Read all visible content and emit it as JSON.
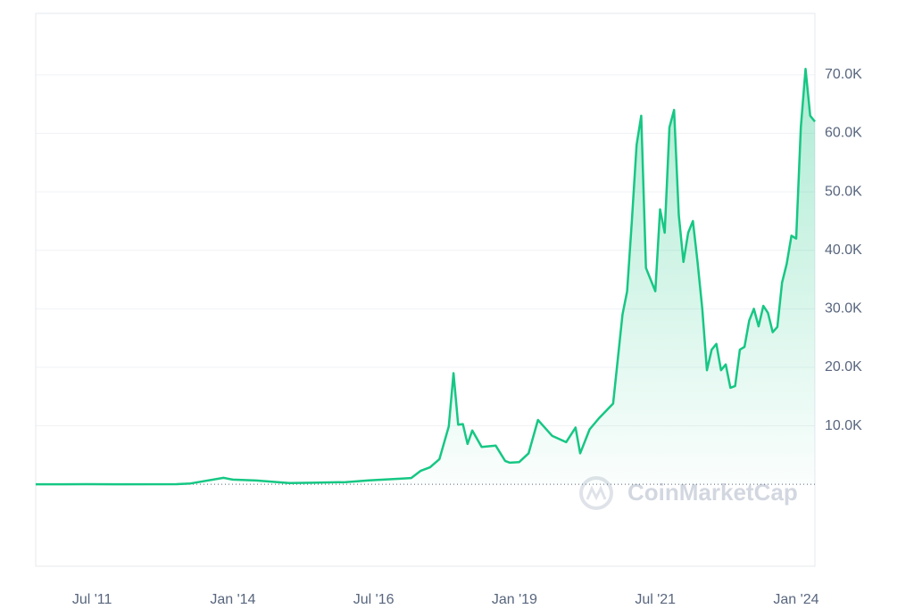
{
  "chart_data": {
    "type": "line",
    "watermark": "CoinMarketCap",
    "color": "#16c784",
    "grid": true,
    "x": [
      "2010-07",
      "2011-01",
      "2011-06",
      "2012-01",
      "2013-01",
      "2013-04",
      "2013-11",
      "2014-01",
      "2014-06",
      "2015-01",
      "2015-06",
      "2016-01",
      "2016-06",
      "2017-01",
      "2017-03",
      "2017-05",
      "2017-07",
      "2017-09",
      "2017-11",
      "2017-12",
      "2018-01",
      "2018-02",
      "2018-03",
      "2018-04",
      "2018-06",
      "2018-09",
      "2018-11",
      "2018-12",
      "2019-02",
      "2019-04",
      "2019-06",
      "2019-07",
      "2019-09",
      "2019-12",
      "2020-02",
      "2020-03",
      "2020-05",
      "2020-07",
      "2020-10",
      "2020-12",
      "2021-01",
      "2021-02",
      "2021-03",
      "2021-04",
      "2021-05",
      "2021-06",
      "2021-07",
      "2021-08",
      "2021-09",
      "2021-10",
      "2021-11",
      "2021-12",
      "2022-01",
      "2022-02",
      "2022-03",
      "2022-04",
      "2022-05",
      "2022-06",
      "2022-07",
      "2022-08",
      "2022-09",
      "2022-10",
      "2022-11",
      "2022-12",
      "2023-01",
      "2023-02",
      "2023-03",
      "2023-04",
      "2023-05",
      "2023-06",
      "2023-07",
      "2023-08",
      "2023-09",
      "2023-10",
      "2023-11",
      "2023-12",
      "2024-01",
      "2024-02",
      "2024-03",
      "2024-04",
      "2024-05"
    ],
    "values": [
      0.1,
      0.3,
      17,
      6,
      20,
      140,
      1100,
      800,
      640,
      220,
      260,
      370,
      670,
      970,
      1080,
      2300,
      2900,
      4300,
      9900,
      19000,
      10200,
      10300,
      6900,
      9200,
      6400,
      6600,
      4000,
      3700,
      3800,
      5300,
      11000,
      10100,
      8300,
      7200,
      9700,
      5300,
      9400,
      11300,
      13800,
      29000,
      33000,
      45000,
      58000,
      63000,
      37000,
      35000,
      33000,
      47000,
      43000,
      61000,
      64000,
      46000,
      38000,
      43000,
      45000,
      38000,
      30000,
      19500,
      23000,
      24000,
      19500,
      20500,
      16500,
      16800,
      23000,
      23500,
      28000,
      30000,
      27000,
      30500,
      29300,
      26000,
      26900,
      34500,
      37700,
      42500,
      42000,
      61000,
      71000,
      63000,
      62000
    ],
    "xlim": [
      "2010-07",
      "2024-05"
    ],
    "xticks": [
      {
        "value": "2011-07",
        "label": "Jul '11"
      },
      {
        "value": "2014-01",
        "label": "Jan '14"
      },
      {
        "value": "2016-07",
        "label": "Jul '16"
      },
      {
        "value": "2019-01",
        "label": "Jan '19"
      },
      {
        "value": "2021-07",
        "label": "Jul '21"
      },
      {
        "value": "2024-01",
        "label": "Jan '24"
      }
    ],
    "ylim": [
      -14000,
      80500
    ],
    "yticks": [
      {
        "value": 10000,
        "label": "10.0K"
      },
      {
        "value": 20000,
        "label": "20.0K"
      },
      {
        "value": 30000,
        "label": "30.0K"
      },
      {
        "value": 40000,
        "label": "40.0K"
      },
      {
        "value": 50000,
        "label": "50.0K"
      },
      {
        "value": 60000,
        "label": "60.0K"
      },
      {
        "value": 70000,
        "label": "70.0K"
      }
    ]
  }
}
